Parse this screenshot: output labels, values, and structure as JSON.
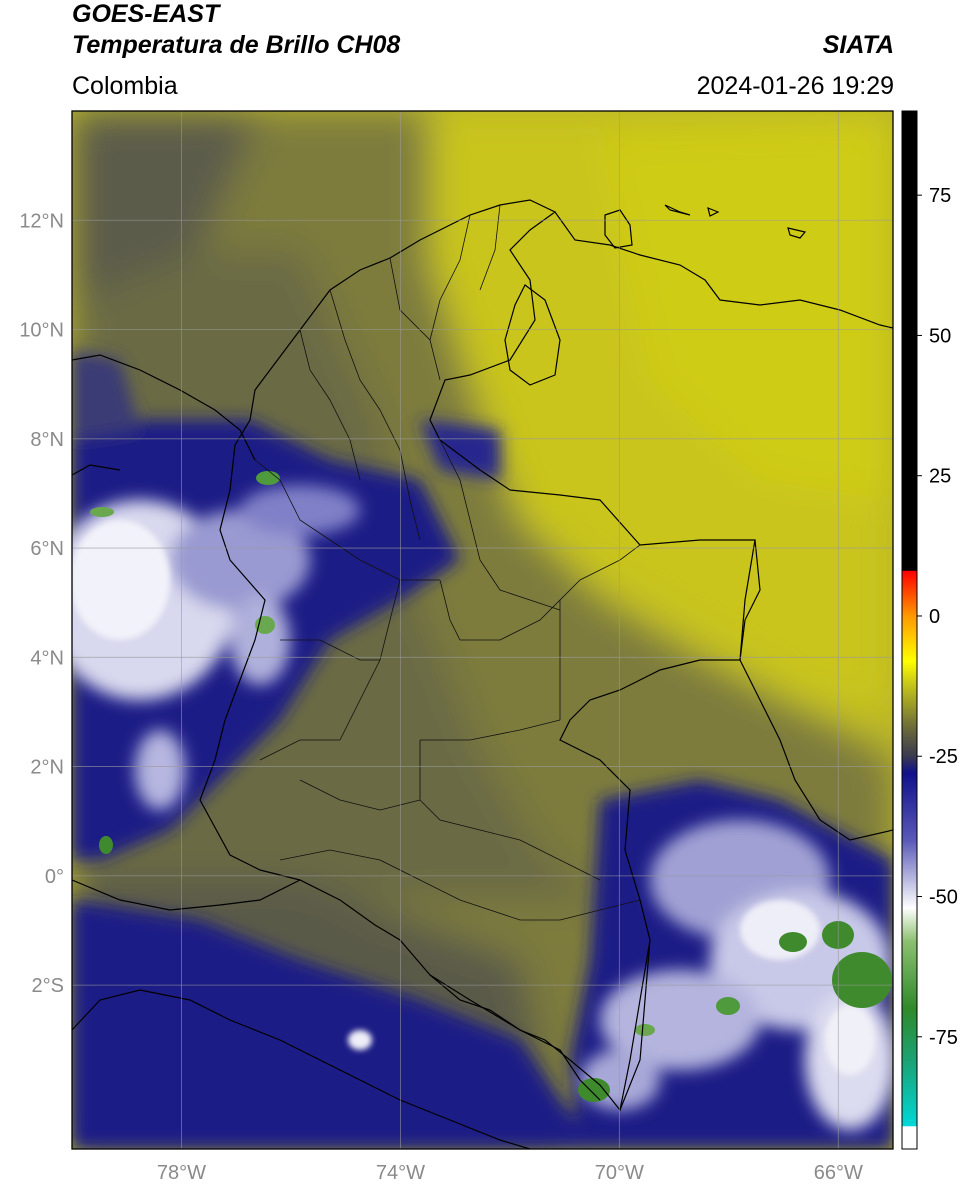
{
  "header": {
    "satellite": "GOES-EAST",
    "product": "Temperatura de Brillo CH08",
    "region": "Colombia",
    "agency": "SIATA",
    "datetime": "2024-01-26 19:29"
  },
  "map": {
    "lat_range": [
      -5.0,
      14.0
    ],
    "lon_range": [
      -80.0,
      -65.0
    ],
    "lat_ticks": [
      {
        "value": 12,
        "label": "12°N"
      },
      {
        "value": 10,
        "label": "10°N"
      },
      {
        "value": 8,
        "label": "8°N"
      },
      {
        "value": 6,
        "label": "6°N"
      },
      {
        "value": 4,
        "label": "4°N"
      },
      {
        "value": 2,
        "label": "2°N"
      },
      {
        "value": 0,
        "label": "0°"
      },
      {
        "value": -2,
        "label": "2°S"
      }
    ],
    "lon_ticks": [
      {
        "value": -78,
        "label": "78°W"
      },
      {
        "value": -74,
        "label": "74°W"
      },
      {
        "value": -70,
        "label": "70°W"
      },
      {
        "value": -66,
        "label": "66°W"
      }
    ],
    "grid": true,
    "field_colors": {
      "warm_yellow": "#c9c41a",
      "olive": "#8a8a2e",
      "dark_olive": "#5a5a3a",
      "navy": "#1a1a8c",
      "cold_white": "#f0f0f8",
      "cold_green": "#3a8a2a"
    }
  },
  "colorbar": {
    "range": [
      -95,
      90
    ],
    "ticks": [
      {
        "value": 75,
        "label": "75"
      },
      {
        "value": 50,
        "label": "50"
      },
      {
        "value": 25,
        "label": "25"
      },
      {
        "value": 0,
        "label": "0"
      },
      {
        "value": -25,
        "label": "-25"
      },
      {
        "value": -50,
        "label": "-50"
      },
      {
        "value": -75,
        "label": "-75"
      }
    ],
    "stops": [
      {
        "value": -95,
        "color": "#ffffff"
      },
      {
        "value": -91,
        "color": "#ffffff"
      },
      {
        "value": -90.9,
        "color": "#00d8d8"
      },
      {
        "value": -80,
        "color": "#1aa57a"
      },
      {
        "value": -70,
        "color": "#2f8a2a"
      },
      {
        "value": -58,
        "color": "#8cc070"
      },
      {
        "value": -52,
        "color": "#ffffff"
      },
      {
        "value": -40,
        "color": "#5a5ab8"
      },
      {
        "value": -28,
        "color": "#10108c"
      },
      {
        "value": -25,
        "color": "#3a3a50"
      },
      {
        "value": -20,
        "color": "#6a6a3a"
      },
      {
        "value": -12,
        "color": "#c8c81a"
      },
      {
        "value": -8,
        "color": "#ffff00"
      },
      {
        "value": 0,
        "color": "#ff9900"
      },
      {
        "value": 8,
        "color": "#ff0000"
      },
      {
        "value": 8.1,
        "color": "#000000"
      },
      {
        "value": 90,
        "color": "#000000"
      }
    ]
  }
}
